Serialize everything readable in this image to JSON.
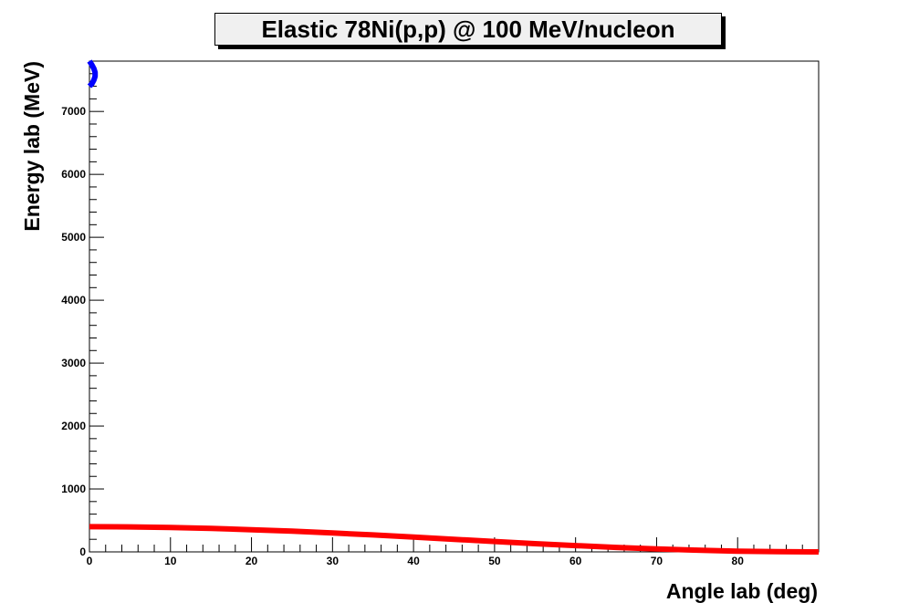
{
  "chart_data": {
    "type": "line",
    "title": "Elastic 78Ni(p,p) @ 100 MeV/nucleon",
    "xlabel": "Angle lab (deg)",
    "ylabel": "Energy lab (MeV)",
    "xlim": [
      0,
      90
    ],
    "ylim": [
      0,
      7800
    ],
    "x_ticks": [
      0,
      10,
      20,
      30,
      40,
      50,
      60,
      70,
      80
    ],
    "y_ticks": [
      0,
      1000,
      2000,
      3000,
      4000,
      5000,
      6000,
      7000
    ],
    "grid": false,
    "series": [
      {
        "color": "#ff0000",
        "points": [
          [
            0,
            400
          ],
          [
            5,
            397
          ],
          [
            10,
            388
          ],
          [
            15,
            373
          ],
          [
            20,
            353
          ],
          [
            25,
            329
          ],
          [
            30,
            300
          ],
          [
            35,
            269
          ],
          [
            40,
            235
          ],
          [
            45,
            200
          ],
          [
            50,
            165
          ],
          [
            55,
            131
          ],
          [
            60,
            100
          ],
          [
            65,
            71
          ],
          [
            70,
            47
          ],
          [
            75,
            27
          ],
          [
            80,
            12
          ],
          [
            85,
            3
          ],
          [
            90,
            0
          ]
        ]
      },
      {
        "color": "#0000ff",
        "points": [
          [
            0,
            7800
          ],
          [
            0.3,
            7740
          ],
          [
            0.55,
            7680
          ],
          [
            0.7,
            7620
          ],
          [
            0.7,
            7560
          ],
          [
            0.55,
            7500
          ],
          [
            0.3,
            7440
          ],
          [
            0,
            7400
          ]
        ]
      }
    ]
  }
}
